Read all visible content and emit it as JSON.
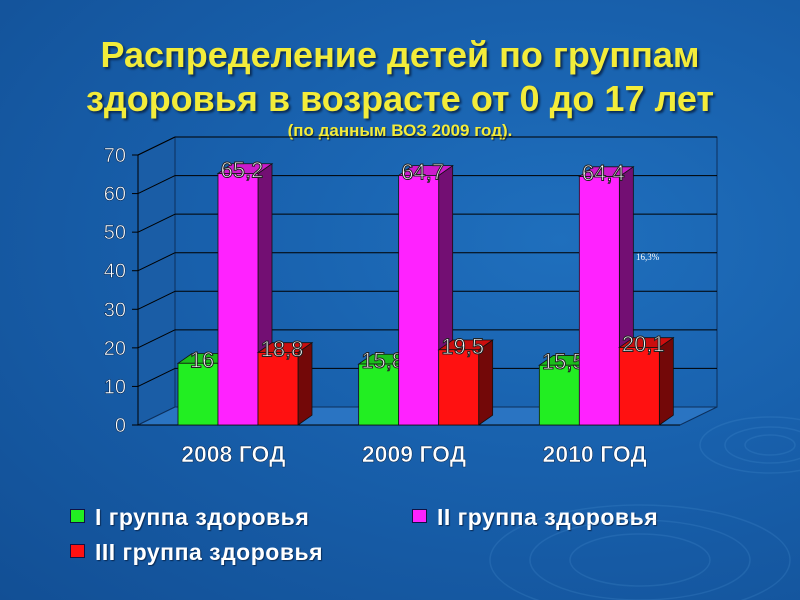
{
  "title_line1": "Распределение детей по группам",
  "title_line2": "здоровья  в возрасте от 0 до 17 лет",
  "subtitle": "(по данным ВОЗ 2009 год).",
  "stray_note": "16,3%",
  "colors": {
    "group1": "#22ee22",
    "group2": "#ff22ff",
    "group3": "#ff1111",
    "title": "#f3ec3a",
    "background": "#1860ac"
  },
  "chart_data": {
    "type": "bar",
    "categories": [
      "2008 ГОД",
      "2009 ГОД",
      "2010 ГОД"
    ],
    "series": [
      {
        "name": "I группа здоровья",
        "values": [
          16,
          15.8,
          15.5
        ],
        "labels": [
          "16",
          "15,8",
          "15,5"
        ]
      },
      {
        "name": "II группа здоровья",
        "values": [
          65.2,
          64.7,
          64.4
        ],
        "labels": [
          "65,2",
          "64,7",
          "64,4"
        ]
      },
      {
        "name": "III группа здоровья",
        "values": [
          18.8,
          19.5,
          20.1
        ],
        "labels": [
          "18,8",
          "19,5",
          "20,1"
        ]
      }
    ],
    "ylim": [
      0,
      70
    ],
    "yticks": [
      "0",
      "10",
      "20",
      "30",
      "40",
      "50",
      "60",
      "70"
    ],
    "grid": true,
    "legend_position": "bottom"
  }
}
